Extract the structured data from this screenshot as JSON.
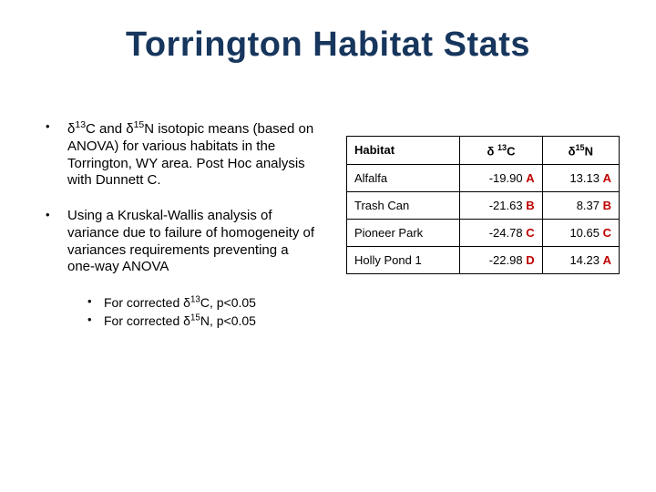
{
  "title": "Torrington Habitat Stats",
  "bullets": {
    "b1": {
      "pre": "δ",
      "sup1": "13",
      "mid1": "C and δ",
      "sup2": "15",
      "post": "N isotopic means (based on ANOVA) for various habitats in the Torrington, WY area.  Post Hoc analysis with Dunnett C."
    },
    "b2": {
      "text": "Using a Kruskal-Wallis analysis of variance due to failure of homogeneity of variances requirements preventing a one-way ANOVA"
    },
    "b2sub1": {
      "pre": "For corrected δ",
      "sup": "13",
      "post": "C, p<0.05"
    },
    "b2sub2": {
      "pre": "For corrected δ",
      "sup": "15",
      "post": "N, p<0.05"
    }
  },
  "table": {
    "headers": {
      "h0": "Habitat",
      "h1_pre": "δ ",
      "h1_sup": "13",
      "h1_post": "C",
      "h2_pre": "δ",
      "h2_sup": "15",
      "h2_post": "N"
    },
    "rows": [
      {
        "habitat": "Alfalfa",
        "c": "-19.90",
        "cL": "A",
        "n": "13.13",
        "nL": "A"
      },
      {
        "habitat": "Trash Can",
        "c": "-21.63",
        "cL": "B",
        "n": "8.37",
        "nL": "B"
      },
      {
        "habitat": "Pioneer Park",
        "c": "-24.78",
        "cL": "C",
        "n": "10.65",
        "nL": "C"
      },
      {
        "habitat": "Holly Pond 1",
        "c": "-22.98",
        "cL": "D",
        "n": "14.23",
        "nL": "A"
      }
    ]
  },
  "colors": {
    "title": "#17365d",
    "letter": "#c00000",
    "background": "#ffffff",
    "border": "#000000"
  }
}
